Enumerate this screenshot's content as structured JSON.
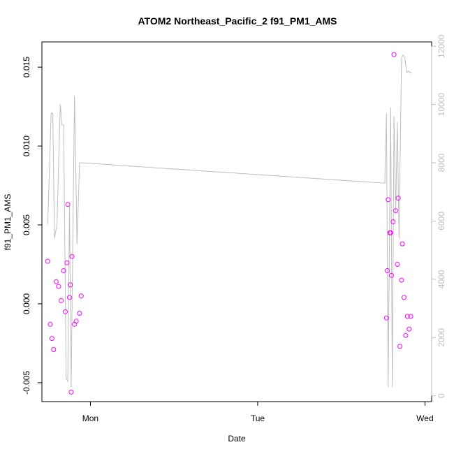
{
  "chart_data": {
    "type": "scatter",
    "title": "ATOM2 Northeast_Pacific_2 f91_PM1_AMS",
    "xlabel": "Date",
    "ylabel": "f91_PM1_AMS",
    "x_ticks": [
      "Mon",
      "Tue",
      "Wed"
    ],
    "x_tick_values": [
      1.0,
      2.0,
      3.0
    ],
    "xlim": [
      0.71,
      3.04
    ],
    "x_units": "days on date axis (Mon = 1, Tue = 2, Wed = 3)",
    "y_ticks": [
      "-0.005",
      "0.000",
      "0.005",
      "0.010",
      "0.015"
    ],
    "y_tick_values": [
      -0.005,
      0.0,
      0.005,
      0.01,
      0.015
    ],
    "ylim": [
      -0.0062,
      0.0166
    ],
    "y2_ticks": [
      "0",
      "2000",
      "4000",
      "6000",
      "8000",
      "10000",
      "12000"
    ],
    "y2_tick_values": [
      0,
      2000,
      4000,
      6000,
      8000,
      10000,
      12000
    ],
    "y2lim": [
      -200,
      12150
    ],
    "colors": {
      "points": "#ff00ff",
      "line": "#bebebe",
      "axis": "#000000",
      "axis2": "#bebebe"
    },
    "series": [
      {
        "kind": "points",
        "axis": "left",
        "x": [
          0.745,
          0.76,
          0.77,
          0.78,
          0.795,
          0.81,
          0.825,
          0.84,
          0.85,
          0.86,
          0.865,
          0.875,
          0.88,
          0.885,
          0.89,
          0.905,
          0.915,
          0.935,
          0.945,
          2.77,
          2.775,
          2.78,
          2.79,
          2.795,
          2.8,
          2.81,
          2.815,
          2.825,
          2.835,
          2.84,
          2.85,
          2.86,
          2.865,
          2.875,
          2.885,
          2.895,
          2.905,
          2.915
        ],
        "y": [
          0.0027,
          -0.0013,
          -0.0022,
          -0.0029,
          0.0014,
          0.0011,
          0.0002,
          0.0021,
          -0.0005,
          0.0026,
          0.0063,
          0.0004,
          0.0012,
          -0.0056,
          0.003,
          -0.0013,
          -0.0011,
          -0.0006,
          0.0005,
          -0.0009,
          0.0021,
          0.0066,
          0.0045,
          0.0045,
          0.0018,
          0.0052,
          0.0158,
          0.0059,
          0.0025,
          0.0067,
          -0.0027,
          0.0015,
          0.0038,
          0.0004,
          -0.002,
          -0.0008,
          -0.0016,
          -0.0008
        ]
      },
      {
        "kind": "line",
        "axis": "right",
        "x": [
          0.745,
          0.765,
          0.775,
          0.785,
          0.8,
          0.82,
          0.83,
          0.84,
          0.855,
          0.865,
          0.875,
          0.885,
          0.895,
          0.905,
          0.92,
          0.935,
          0.94,
          0.95,
          2.76,
          2.77,
          2.78,
          2.795,
          2.805,
          2.815,
          2.825,
          2.835,
          2.845,
          2.86,
          2.87,
          2.88,
          2.89,
          2.9,
          2.91,
          2.92
        ],
        "y": [
          5900,
          9700,
          9700,
          5400,
          5900,
          10000,
          9300,
          9300,
          600,
          500,
          6500,
          300,
          5500,
          10300,
          5200,
          8000,
          8000,
          8000,
          7300,
          9700,
          300,
          9900,
          300,
          9600,
          6300,
          9400,
          5400,
          11600,
          11700,
          11600,
          11100,
          11150,
          11100,
          11100
        ]
      }
    ]
  }
}
